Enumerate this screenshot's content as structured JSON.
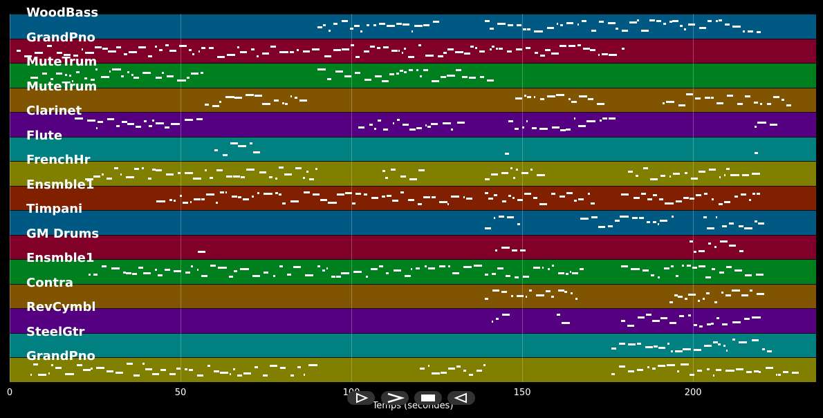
{
  "colors": {
    "tracks": [
      "#005983",
      "#80002a",
      "#007f1f",
      "#805400",
      "#540080",
      "#008080",
      "#807f00",
      "#802000",
      "#005983",
      "#80002a",
      "#007f1f",
      "#805400",
      "#540080",
      "#008080",
      "#807f00"
    ],
    "notes": "#ffffff",
    "background": "#000000"
  },
  "tracks": [
    {
      "name": "WoodBass"
    },
    {
      "name": "GrandPno"
    },
    {
      "name": "MuteTrum"
    },
    {
      "name": "MuteTrum"
    },
    {
      "name": "Clarinet"
    },
    {
      "name": "Flute"
    },
    {
      "name": "FrenchHr"
    },
    {
      "name": "Ensmble1"
    },
    {
      "name": "Timpani"
    },
    {
      "name": "GM Drums"
    },
    {
      "name": "Ensmble1"
    },
    {
      "name": "Contra"
    },
    {
      "name": "RevCymbl"
    },
    {
      "name": "SteelGtr"
    },
    {
      "name": "GrandPno"
    }
  ],
  "xaxis": {
    "ticks": [
      "0",
      "50",
      "100",
      "150",
      "200"
    ],
    "title": "Temps (secondes)",
    "range": [
      0,
      236
    ]
  },
  "controls": [
    {
      "name": "play-button",
      "icon": "play-outline-icon"
    },
    {
      "name": "forward-button",
      "icon": "chevron-right-icon"
    },
    {
      "name": "stop-button",
      "icon": "stop-square-icon"
    },
    {
      "name": "rewind-button",
      "icon": "play-reverse-outline-icon"
    }
  ]
}
